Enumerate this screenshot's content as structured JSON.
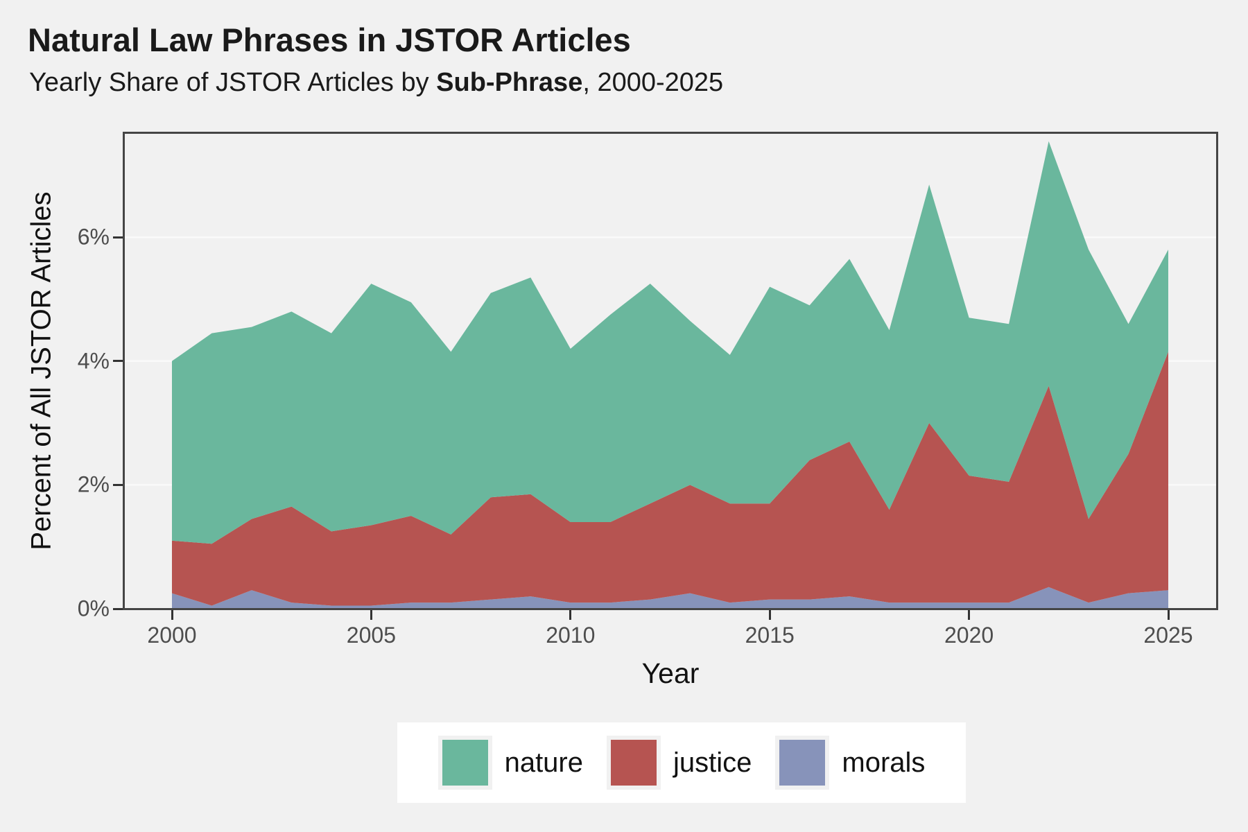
{
  "title": "Natural Law Phrases in JSTOR Articles",
  "subtitle": {
    "prefix": "Yearly Share of JSTOR Articles by ",
    "emphasis": "Sub-Phrase",
    "suffix": ", 2000-2025"
  },
  "axes": {
    "x": {
      "title": "Year",
      "ticks": [
        "2000",
        "2005",
        "2010",
        "2015",
        "2020",
        "2025"
      ],
      "tick_values": [
        2000,
        2005,
        2010,
        2015,
        2020,
        2025
      ]
    },
    "y": {
      "title": "Percent of All JSTOR Articles",
      "ticks": [
        "0%",
        "2%",
        "4%",
        "6%"
      ],
      "tick_values": [
        0,
        2,
        4,
        6
      ]
    }
  },
  "legend": {
    "position": "bottom",
    "items": [
      {
        "label": "nature",
        "color": "#6ab79d"
      },
      {
        "label": "justice",
        "color": "#b65451"
      },
      {
        "label": "morals",
        "color": "#8793ba"
      }
    ]
  },
  "colors": {
    "background": "#f1f1f1",
    "panel_background": "#f1f1f1",
    "gridline": "#fafafa",
    "panel_border": "#454545",
    "tick_mark": "#333333",
    "tick_label": "#4d4d4d",
    "legend_background": "#ffffff",
    "nature": "#6ab79d",
    "justice": "#b65451",
    "morals": "#8793ba"
  },
  "chart_data": {
    "type": "area",
    "stacked": true,
    "title": "Natural Law Phrases in JSTOR Articles",
    "subtitle": "Yearly Share of JSTOR Articles by Sub-Phrase, 2000-2025",
    "xlabel": "Year",
    "ylabel": "Percent of All JSTOR Articles",
    "xlim": [
      2000,
      2025
    ],
    "ylim": [
      0,
      7.72
    ],
    "grid": "major-horizontal",
    "legend_position": "bottom",
    "x": [
      2000,
      2001,
      2002,
      2003,
      2004,
      2005,
      2006,
      2007,
      2008,
      2009,
      2010,
      2011,
      2012,
      2013,
      2014,
      2015,
      2016,
      2017,
      2018,
      2019,
      2020,
      2021,
      2022,
      2023,
      2024,
      2025
    ],
    "series": [
      {
        "name": "morals",
        "color": "#8793ba",
        "values": [
          0.25,
          0.05,
          0.3,
          0.1,
          0.05,
          0.05,
          0.1,
          0.1,
          0.15,
          0.2,
          0.1,
          0.1,
          0.15,
          0.25,
          0.1,
          0.15,
          0.15,
          0.2,
          0.1,
          0.1,
          0.1,
          0.1,
          0.35,
          0.1,
          0.25,
          0.3
        ]
      },
      {
        "name": "justice",
        "color": "#b65451",
        "values": [
          0.85,
          1.0,
          1.15,
          1.55,
          1.2,
          1.3,
          1.4,
          1.1,
          1.65,
          1.65,
          1.3,
          1.3,
          1.55,
          1.75,
          1.6,
          1.55,
          2.25,
          2.5,
          1.5,
          2.9,
          2.05,
          1.95,
          3.25,
          1.35,
          2.25,
          3.85
        ]
      },
      {
        "name": "nature",
        "color": "#6ab79d",
        "values": [
          2.9,
          3.4,
          3.1,
          3.15,
          3.2,
          3.9,
          3.45,
          2.95,
          3.3,
          3.5,
          2.8,
          3.35,
          3.55,
          2.65,
          2.4,
          3.5,
          2.5,
          2.95,
          2.9,
          3.85,
          2.55,
          2.55,
          3.95,
          4.35,
          2.1,
          1.65
        ]
      }
    ],
    "stacked_totals": [
      4.0,
      4.45,
      4.55,
      4.8,
      4.45,
      5.25,
      4.95,
      4.15,
      5.1,
      5.35,
      4.2,
      4.75,
      5.25,
      4.65,
      4.1,
      5.2,
      4.9,
      5.65,
      4.5,
      6.85,
      4.7,
      4.6,
      7.55,
      5.8,
      4.6,
      5.8
    ]
  }
}
